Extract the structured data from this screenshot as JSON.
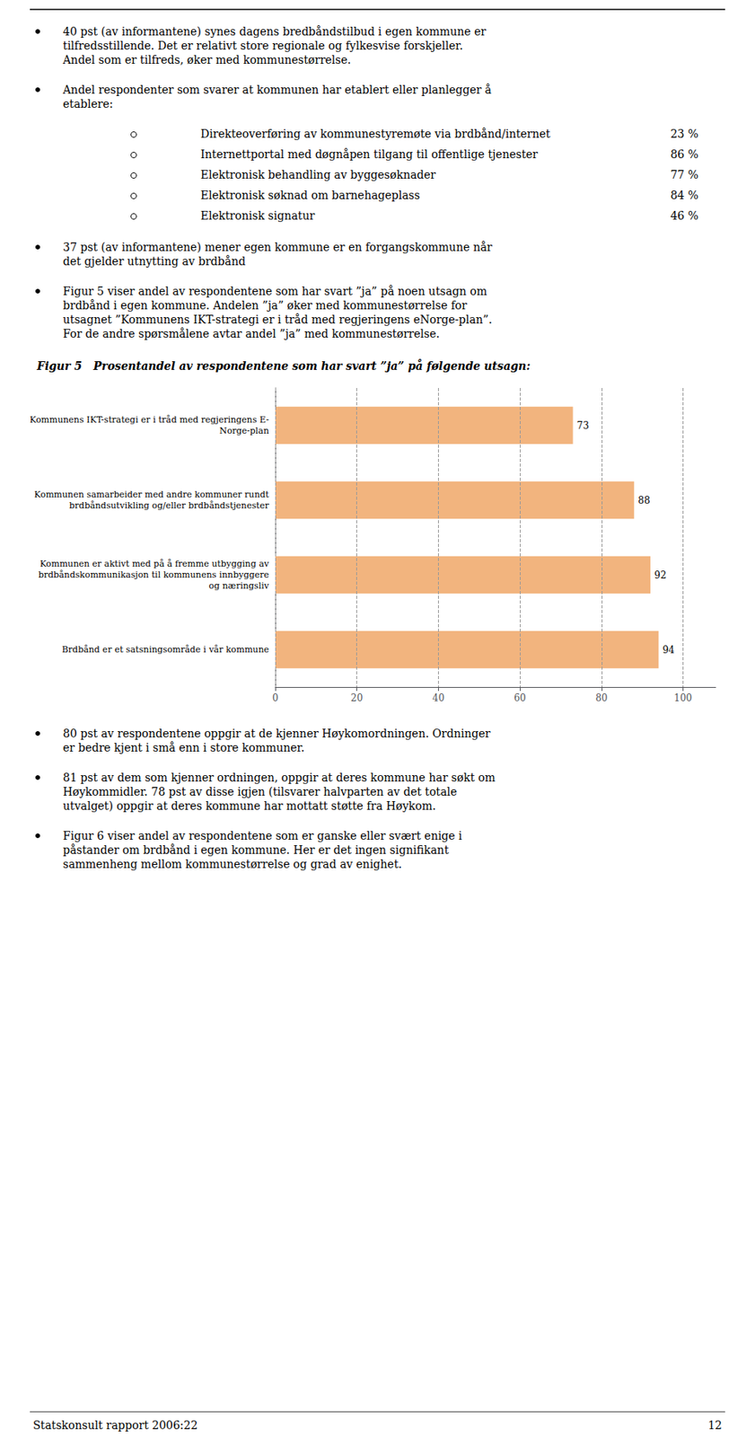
{
  "chart_data": {
    "type": "bar",
    "orientation": "horizontal",
    "title": "Figur 5   Prosentandel av respondentene som har svart ”ja” på følgende utsagn:",
    "categories": [
      "Kommunens IKT-strategi er i tråd med regjeringens E-\nNorge-plan",
      "Kommunen samarbeider med andre kommuner rundt\nbrdbåndsutvikling og/eller brdbåndstjenester",
      "Kommunen er aktivt med på å fremme utbygging av\nbrdbåndskommunikasjon til kommunens innbyggere\nog næringsliv",
      "Brdbånd er et satsningsområde i vår kommune"
    ],
    "values": [
      73,
      88,
      92,
      94
    ],
    "color": "#f2b47e",
    "xlim": [
      0,
      108
    ],
    "xticks": [
      0,
      20,
      40,
      60,
      80,
      100
    ],
    "grid": true,
    "data_labels": true,
    "annotations": [
      "40 pst (av informantene) synes dagens bredbåndstilbud i egen kommune er\ntilfredsstillende. Det er relativt store regionale og fylkesvise forskjeller.\nAndel som er tilfreds, øker med kommunestørrelse.",
      "Andel respondenter som svarer at kommunen har etablert eller planlegger å\netablere:",
      "Direkteoverføring av kommunestyremøte via brdbånd/internet",
      "23 %",
      "Internettportal med døgnåpen tilgang til offentlige tjenester",
      "86 %",
      "Elektronisk behandling av byggesøknader",
      "77 %",
      "Elektronisk søknad om barnehageplass",
      "84 %",
      "Elektronisk signatur",
      "46 %",
      "37 pst (av informantene) mener egen kommune er en forgangskommune når\ndet gjelder utnytting av brdbånd",
      "Figur 5 viser andel av respondentene som har svart ”ja” på noen utsagn om\nbrdbånd i egen kommune. Andelen ”ja” øker med kommunestørrelse for\nutsagnet ”Kommunens IKT-strategi er i tråd med regjeringens eNorge-plan”.\nFor de andre spørsmålene avtar andel ”ja” med kommunestørrelse.",
      "80 pst av respondentene oppgir at de kjenner Høykomordningen. Ordninger\ner bedre kjent i små enn i store kommuner.",
      "81 pst av dem som kjenner ordningen, oppgir at deres kommune har søkt om\nHøykommidler. 78 pst av disse igjen (tilsvarer halvparten av det totale\nutvalget) oppgir at deres kommune har mottatt støtte fra Høykom.",
      "Figur 6 viser andel av respondentene som er ganske eller svært enige i\npåstander om brdbånd i egen kommune. Her er det ingen signifikant\nsammenheng mellom kommunestørrelse og grad av enighet.",
      "Statskonsult rapport 2006:22",
      "12"
    ]
  }
}
